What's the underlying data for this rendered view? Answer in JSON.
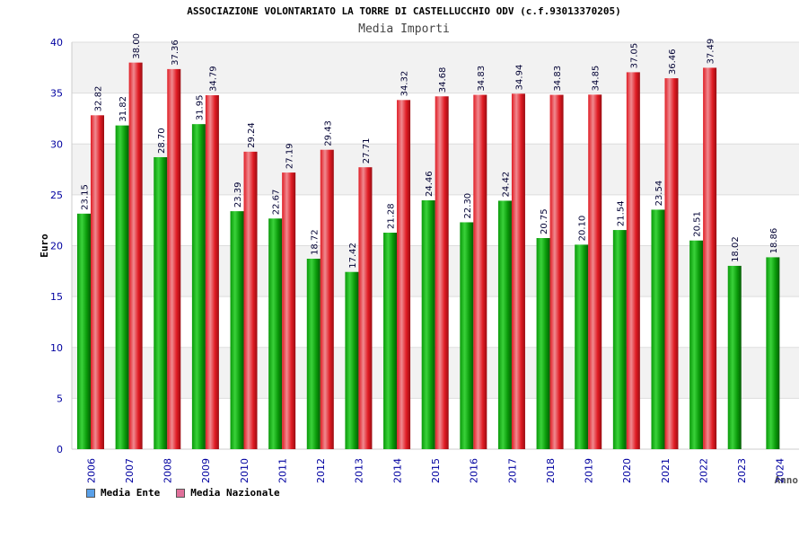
{
  "header": {
    "title": "ASSOCIAZIONE VOLONTARIATO LA TORRE DI CASTELLUCCHIO ODV (c.f.93013370205)",
    "subtitle": "Media Importi"
  },
  "legend": {
    "ente_label": "Media Ente",
    "nazionale_label": "Media Nazionale",
    "ente_swatch_color": "#5aa0e8",
    "nazionale_swatch_color": "#e0709a"
  },
  "colors": {
    "ente": "#0a9a0a",
    "nazionale": "#e01c24",
    "axis_text": "#0000a0",
    "band": "#f2f2f2"
  },
  "chart_data": {
    "type": "bar",
    "title": "ASSOCIAZIONE VOLONTARIATO LA TORRE DI CASTELLUCCHIO ODV (c.f.93013370205)",
    "subtitle": "Media Importi",
    "xlabel": "Anno",
    "ylabel": "Euro",
    "ylim": [
      0,
      40
    ],
    "yticks": [
      0,
      5,
      10,
      15,
      20,
      25,
      30,
      35,
      40
    ],
    "categories": [
      "2006",
      "2007",
      "2008",
      "2009",
      "2010",
      "2011",
      "2012",
      "2013",
      "2014",
      "2015",
      "2016",
      "2017",
      "2018",
      "2019",
      "2020",
      "2021",
      "2022",
      "2023",
      "2024"
    ],
    "series": [
      {
        "name": "Media Ente",
        "values": [
          23.15,
          31.82,
          28.7,
          31.95,
          23.39,
          22.67,
          18.72,
          17.42,
          21.28,
          24.46,
          22.3,
          24.42,
          20.75,
          20.1,
          21.54,
          23.54,
          20.51,
          18.02,
          18.86
        ],
        "labels": [
          "23.15",
          "31.82",
          "28.70",
          "31.95",
          "23.39",
          "22.67",
          "18.72",
          "17.42",
          "21.28",
          "24.46",
          "22.30",
          "24.42",
          "20.75",
          "20.10",
          "21.54",
          "23.54",
          "20.51",
          "18.02",
          "18.86"
        ]
      },
      {
        "name": "Media Nazionale",
        "values": [
          32.82,
          38.0,
          37.36,
          34.79,
          29.24,
          27.19,
          29.43,
          27.71,
          34.32,
          34.68,
          34.83,
          34.94,
          34.83,
          34.85,
          37.05,
          36.46,
          37.49,
          null,
          null
        ],
        "labels": [
          "32.82",
          "38.00",
          "37.36",
          "34.79",
          "29.24",
          "27.19",
          "29.43",
          "27.71",
          "34.32",
          "34.68",
          "34.83",
          "34.94",
          "34.83",
          "34.85",
          "37.05",
          "36.46",
          "37.49",
          null,
          null
        ]
      }
    ],
    "grid": true,
    "legend_position": "bottom-left"
  }
}
